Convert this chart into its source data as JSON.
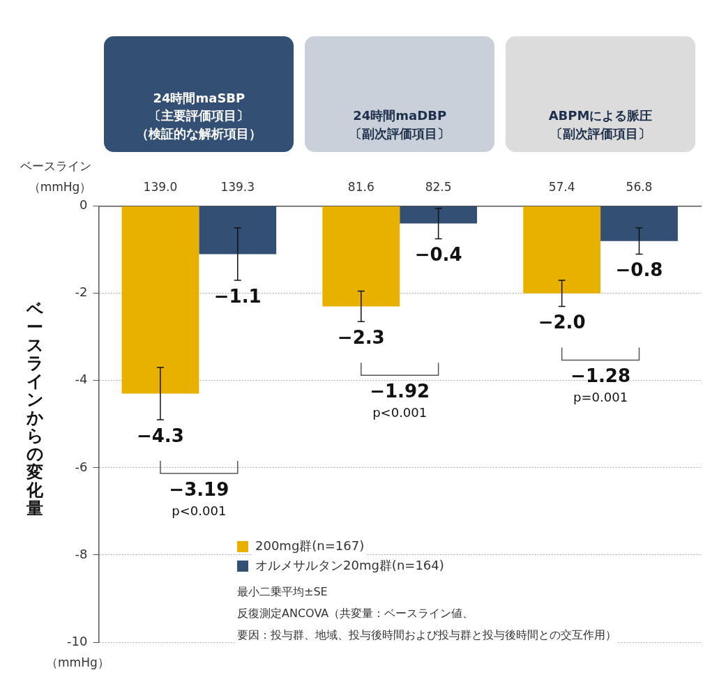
{
  "chart_data": {
    "type": "bar",
    "categories": [
      "24時間maSBP〔主要評価項目〕（検証的な解析項目）",
      "24時間maDBP〔副次評価項目〕",
      "ABPMによる脈圧〔副次評価項目〕"
    ],
    "series": [
      {
        "name": "200mg群(n=167)",
        "color": "#e8b100",
        "values": [
          -4.3,
          -2.3,
          -2.0
        ],
        "errors": [
          0.6,
          0.35,
          0.3
        ],
        "value_labels": [
          "−4.3",
          "−2.3",
          "−2.0"
        ]
      },
      {
        "name": "オルメサルタン20mg群(n=164)",
        "color": "#334f74",
        "values": [
          -1.1,
          -0.4,
          -0.8
        ],
        "errors": [
          0.6,
          0.35,
          0.3
        ],
        "value_labels": [
          "−1.1",
          "−0.4",
          "−0.8"
        ]
      }
    ],
    "ylabel": "ベースラインからの変化量",
    "ylim": [
      -10,
      0
    ],
    "yticks": [
      0,
      -2,
      -4,
      -6,
      -8,
      -10
    ],
    "grid": "y",
    "legend": "bottom",
    "annotations": [
      "ベースライン（mmHg）",
      "（mmHg）",
      "最小二乗平均±SE",
      "反復測定ANCOVA（共変量：ベースライン値、",
      "要因：投与群、地域、投与後時間および投与群と投与後時間との交互作用）",
      "139.0",
      "139.3",
      "81.6",
      "82.5",
      "57.4",
      "56.8",
      "−3.19",
      "p<0.001",
      "−1.92",
      "p<0.001",
      "−1.28",
      "p=0.001"
    ]
  }
}
